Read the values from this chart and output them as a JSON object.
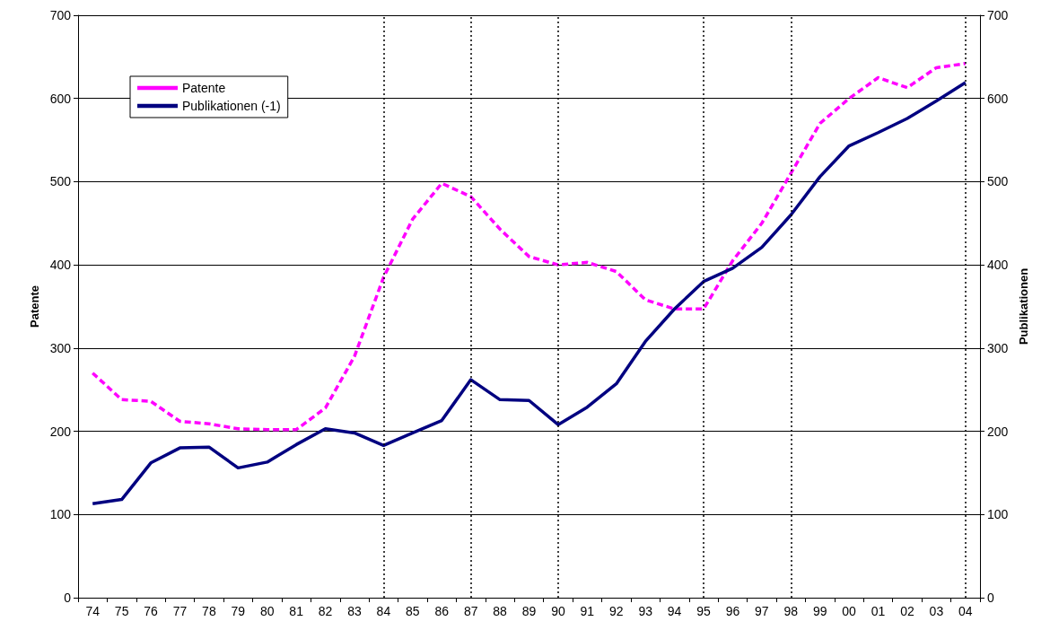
{
  "chart_data": {
    "type": "line",
    "ylabel": "Patente",
    "y2label": "Publikationen",
    "categories": [
      "74",
      "75",
      "76",
      "77",
      "78",
      "79",
      "80",
      "81",
      "82",
      "83",
      "84",
      "85",
      "86",
      "87",
      "88",
      "89",
      "90",
      "91",
      "92",
      "93",
      "94",
      "95",
      "96",
      "97",
      "98",
      "99",
      "00",
      "01",
      "02",
      "03",
      "04"
    ],
    "series": [
      {
        "name": "Patente",
        "color": "#ff00ff",
        "line_style": "dashed",
        "values": [
          270,
          238,
          236,
          212,
          209,
          203,
          202,
          202,
          228,
          290,
          385,
          455,
          498,
          482,
          443,
          410,
          400,
          403,
          392,
          358,
          347,
          347,
          405,
          450,
          510,
          570,
          600,
          625,
          613,
          637,
          642
        ]
      },
      {
        "name": "Publikationen (-1)",
        "color": "#000080",
        "line_style": "solid",
        "axis": "y2",
        "values": [
          113,
          118,
          162,
          180,
          181,
          156,
          163,
          184,
          203,
          198,
          183,
          198,
          213,
          262,
          238,
          237,
          208,
          229,
          257,
          308,
          347,
          380,
          396,
          421,
          460,
          506,
          543,
          559,
          576,
          597,
          619
        ]
      }
    ],
    "ylim": [
      0,
      700
    ],
    "yticks": [
      0,
      100,
      200,
      300,
      400,
      500,
      600,
      700
    ],
    "y2lim": [
      0,
      700
    ],
    "y2ticks": [
      0,
      100,
      200,
      300,
      400,
      500,
      600,
      700
    ],
    "ref_lines": [
      {
        "axis": "x",
        "value": "84",
        "color": "#000000",
        "line_style": "dotted"
      },
      {
        "axis": "x",
        "value": "87",
        "color": "#000000",
        "line_style": "dotted"
      },
      {
        "axis": "x",
        "value": "90",
        "color": "#000000",
        "line_style": "dotted"
      },
      {
        "axis": "x",
        "value": "95",
        "color": "#000000",
        "line_style": "dotted"
      },
      {
        "axis": "x",
        "value": "98",
        "color": "#000000",
        "line_style": "dotted"
      },
      {
        "axis": "x",
        "value": "04",
        "color": "#000000",
        "line_style": "dotted"
      }
    ],
    "grid": "y",
    "legend": "top left",
    "marker": "none"
  }
}
